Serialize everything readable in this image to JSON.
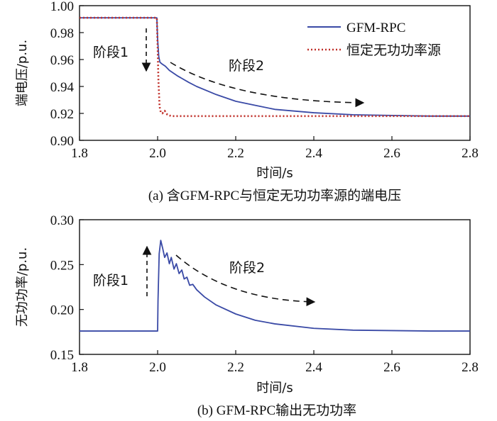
{
  "chart_data": [
    {
      "type": "line",
      "id": "a",
      "caption": "(a)  含GFM-RPC与恒定无功功率源的端电压",
      "xlabel": "时间/s",
      "ylabel": "端电压/p.u.",
      "xlim": [
        1.8,
        2.8
      ],
      "ylim": [
        0.9,
        1.0
      ],
      "xticks": [
        "1.8",
        "2.0",
        "2.2",
        "2.4",
        "2.6",
        "2.8"
      ],
      "yticks": [
        "0.90",
        "0.92",
        "0.94",
        "0.96",
        "0.98",
        "1.00"
      ],
      "legend_position": "top-right",
      "annotations": [
        "阶段1",
        "阶段2"
      ],
      "series": [
        {
          "name": "GFM-RPC",
          "color": "#3a4aa6",
          "style": "solid",
          "x": [
            1.8,
            1.9,
            1.998,
            2.0,
            2.003,
            2.006,
            2.01,
            2.02,
            2.03,
            2.05,
            2.08,
            2.1,
            2.15,
            2.2,
            2.25,
            2.3,
            2.4,
            2.5,
            2.6,
            2.7,
            2.8
          ],
          "y": [
            0.991,
            0.991,
            0.991,
            0.975,
            0.962,
            0.958,
            0.957,
            0.955,
            0.952,
            0.948,
            0.943,
            0.94,
            0.934,
            0.929,
            0.926,
            0.923,
            0.9205,
            0.919,
            0.9185,
            0.918,
            0.918
          ]
        },
        {
          "name": "恒定无功功率源",
          "color": "#c0302a",
          "style": "dotted",
          "x": [
            1.8,
            1.9,
            1.998,
            2.0,
            2.002,
            2.005,
            2.008,
            2.012,
            2.018,
            2.025,
            2.035,
            2.05,
            2.1,
            2.2,
            2.4,
            2.6,
            2.8
          ],
          "y": [
            0.991,
            0.991,
            0.991,
            0.97,
            0.945,
            0.925,
            0.921,
            0.92,
            0.922,
            0.919,
            0.918,
            0.918,
            0.918,
            0.918,
            0.918,
            0.918,
            0.918
          ]
        }
      ]
    },
    {
      "type": "line",
      "id": "b",
      "caption": "(b)  GFM-RPC输出无功功率",
      "xlabel": "时间/s",
      "ylabel": "无功功率/p.u.",
      "xlim": [
        1.8,
        2.8
      ],
      "ylim": [
        0.15,
        0.3
      ],
      "xticks": [
        "1.8",
        "2.0",
        "2.2",
        "2.4",
        "2.6",
        "2.8"
      ],
      "yticks": [
        "0.15",
        "0.20",
        "0.25",
        "0.30"
      ],
      "annotations": [
        "阶段1",
        "阶段2"
      ],
      "series": [
        {
          "name": "GFM-RPC",
          "color": "#3a4aa6",
          "style": "solid",
          "x": [
            1.8,
            1.9,
            2.0,
            2.001,
            2.004,
            2.008,
            2.013,
            2.018,
            2.024,
            2.03,
            2.035,
            2.042,
            2.048,
            2.055,
            2.062,
            2.068,
            2.075,
            2.082,
            2.09,
            2.1,
            2.12,
            2.15,
            2.2,
            2.25,
            2.3,
            2.4,
            2.5,
            2.6,
            2.7,
            2.8
          ],
          "y": [
            0.176,
            0.176,
            0.176,
            0.21,
            0.262,
            0.277,
            0.268,
            0.258,
            0.263,
            0.251,
            0.258,
            0.245,
            0.251,
            0.24,
            0.244,
            0.234,
            0.236,
            0.227,
            0.228,
            0.222,
            0.214,
            0.205,
            0.195,
            0.188,
            0.184,
            0.179,
            0.177,
            0.1765,
            0.176,
            0.176
          ]
        }
      ]
    }
  ]
}
